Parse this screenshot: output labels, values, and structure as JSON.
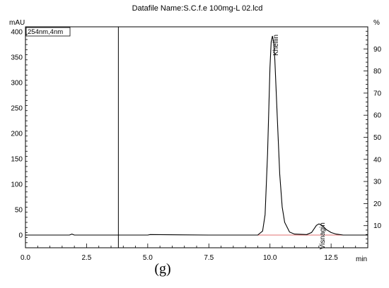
{
  "chart_data": {
    "type": "line",
    "title": "Datafile Name:S.C.f.e 100mg-L 02.lcd",
    "xlabel": "min",
    "ylabel_left": "mAU",
    "ylabel_right": "%",
    "channel_label": "254nm,4nm",
    "xlim": [
      0,
      14
    ],
    "ylim_left": [
      -25,
      410
    ],
    "ylim_right": [
      0,
      100
    ],
    "x_ticks": [
      "0.0",
      "2.5",
      "5.0",
      "7.5",
      "10.0",
      "12.5"
    ],
    "y_left_ticks": [
      "0",
      "50",
      "100",
      "150",
      "200",
      "250",
      "300",
      "350",
      "400"
    ],
    "y_right_ticks": [
      "10",
      "20",
      "30",
      "40",
      "50",
      "60",
      "70",
      "80",
      "90"
    ],
    "marker_line_x": 3.8,
    "peaks": [
      {
        "label": "Khellin",
        "rt": 10.1,
        "height": 392
      },
      {
        "label": "Visnagin",
        "rt": 12.0,
        "height": 22
      }
    ],
    "baseline_mAU": 0,
    "series": [
      {
        "x": [
          0,
          1.8,
          1.9,
          2.0,
          5.0,
          5.1,
          7.5,
          9.5,
          9.7,
          9.8,
          9.9,
          10.0,
          10.05,
          10.1,
          10.15,
          10.2,
          10.3,
          10.4,
          10.5,
          10.6,
          10.8,
          11.0,
          11.5,
          11.7,
          11.8,
          11.9,
          12.0,
          12.1,
          12.2,
          12.3,
          12.5,
          12.7,
          13.0,
          14.0
        ],
        "y": [
          0,
          0,
          2,
          0,
          0,
          1,
          0,
          0,
          8,
          40,
          160,
          330,
          380,
          392,
          380,
          345,
          230,
          120,
          55,
          25,
          6,
          2,
          1,
          5,
          12,
          19,
          22,
          20,
          16,
          11,
          5,
          2,
          0,
          0
        ]
      }
    ]
  },
  "figure_label": "(g)"
}
